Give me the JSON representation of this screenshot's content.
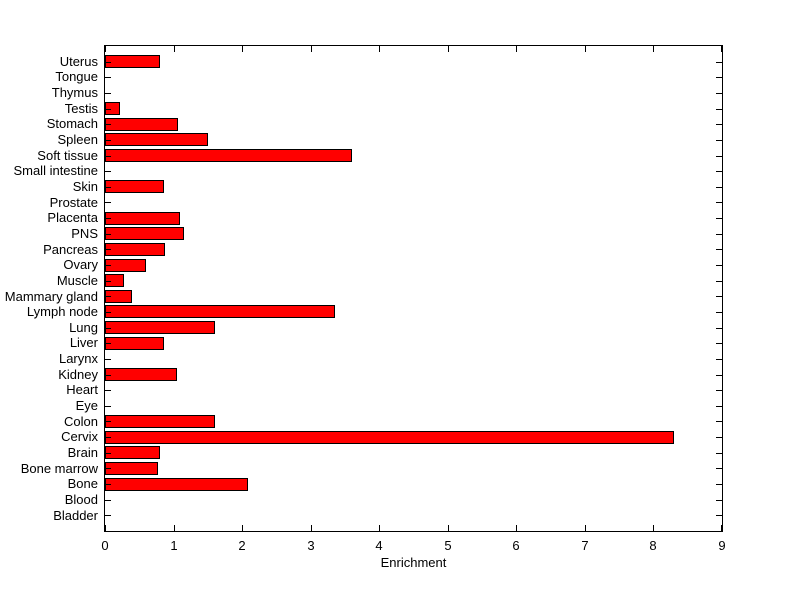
{
  "chart_data": {
    "type": "bar",
    "orientation": "horizontal",
    "title": "",
    "xlabel": "Enrichment",
    "ylabel": "",
    "xlim": [
      0,
      9
    ],
    "xticks": [
      0,
      1,
      2,
      3,
      4,
      5,
      6,
      7,
      8,
      9
    ],
    "grid": false,
    "legend": null,
    "categories": [
      "Uterus",
      "Tongue",
      "Thymus",
      "Testis",
      "Stomach",
      "Spleen",
      "Soft tissue",
      "Small intestine",
      "Skin",
      "Prostate",
      "Placenta",
      "PNS",
      "Pancreas",
      "Ovary",
      "Muscle",
      "Mammary gland",
      "Lymph node",
      "Lung",
      "Liver",
      "Larynx",
      "Kidney",
      "Heart",
      "Eye",
      "Colon",
      "Cervix",
      "Brain",
      "Bone marrow",
      "Bone",
      "Blood",
      "Bladder"
    ],
    "values": [
      0.8,
      0,
      0,
      0.22,
      1.07,
      1.5,
      3.6,
      0,
      0.86,
      0,
      1.1,
      1.15,
      0.87,
      0.6,
      0.28,
      0.4,
      3.35,
      1.6,
      0.86,
      0,
      1.05,
      0,
      0,
      1.6,
      8.3,
      0.8,
      0.78,
      2.08,
      0,
      0
    ],
    "colors": {
      "bar_fill": "#FF0000",
      "bar_edge": "#000000",
      "axis": "#000000",
      "text": "#000000",
      "background": "#FFFFFF"
    }
  }
}
